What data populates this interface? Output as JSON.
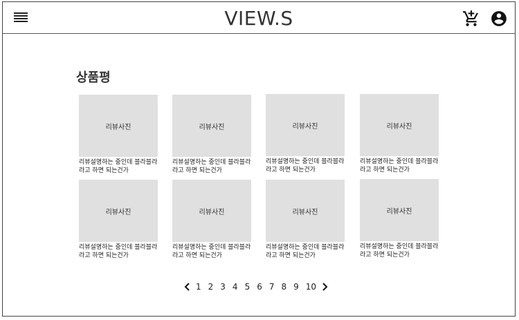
{
  "header": {
    "logo": "VIEW.S",
    "menu_icon": "hamburger-menu-icon",
    "cart_icon": "shopping-cart-add-icon",
    "account_icon": "account-circle-icon"
  },
  "section": {
    "title": "상품평"
  },
  "reviews": [
    {
      "photo_label": "리뷰사진",
      "description": "리뷰설명하는 중인데 블라블라라고 하면 되는건가"
    },
    {
      "photo_label": "리뷰사진",
      "description": "리뷰설명하는 중인데 블라블라라고 하면 되는건가"
    },
    {
      "photo_label": "리뷰사진",
      "description": "리뷰설명하는 중인데 블라블라라고 하면 되는건가"
    },
    {
      "photo_label": "리뷰사진",
      "description": "리뷰설명하는 중인데 블라블라라고 하면 되는건가"
    },
    {
      "photo_label": "리뷰사진",
      "description": "리뷰설명하는 중인데 블라블라라고 하면 되는건가"
    },
    {
      "photo_label": "리뷰사진",
      "description": "리뷰설명하는 중인데 블라블라라고 하면 되는건가"
    },
    {
      "photo_label": "리뷰사진",
      "description": "리뷰설명하는 중인데 블라블라라고 하면 되는건가"
    },
    {
      "photo_label": "리뷰사진",
      "description": "리뷰설명하는 중인데 블라블라라고 하면 되는건가"
    }
  ],
  "pagination": {
    "prev_icon": "chevron-left-icon",
    "next_icon": "chevron-right-icon",
    "pages": [
      "1",
      "2",
      "3",
      "4",
      "5",
      "6",
      "7",
      "8",
      "9",
      "10"
    ]
  }
}
